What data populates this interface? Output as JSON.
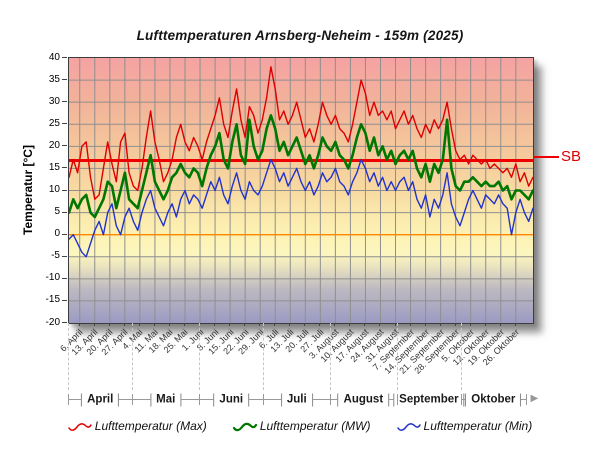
{
  "title": "Lufttemperaturen Arnsberg-Neheim - 159m (2025)",
  "y_axis": {
    "label": "Temperatur [°C]",
    "max": 40,
    "min": -20,
    "step": 5,
    "ticks": [
      "40",
      "35",
      "30",
      "25",
      "20",
      "15",
      "10",
      "5",
      "0",
      "-5",
      "-10",
      "-15",
      "-20"
    ]
  },
  "x_axis": {
    "total_days": 216,
    "week_labels": [
      {
        "label": "6. April",
        "day": 5
      },
      {
        "label": "13. April",
        "day": 12
      },
      {
        "label": "20. April",
        "day": 19
      },
      {
        "label": "27. April",
        "day": 26
      },
      {
        "label": "4. Mai",
        "day": 33
      },
      {
        "label": "11. Mai",
        "day": 40
      },
      {
        "label": "18. Mai",
        "day": 47
      },
      {
        "label": "25. Mai",
        "day": 54
      },
      {
        "label": "1. Juni",
        "day": 61
      },
      {
        "label": "8. Juni",
        "day": 68
      },
      {
        "label": "15. Juni",
        "day": 75
      },
      {
        "label": "22. Juni",
        "day": 82
      },
      {
        "label": "29. Juni",
        "day": 89
      },
      {
        "label": "6. Juli",
        "day": 96
      },
      {
        "label": "13. Juli",
        "day": 103
      },
      {
        "label": "20. Juli",
        "day": 110
      },
      {
        "label": "27. Juli",
        "day": 117
      },
      {
        "label": "3. August",
        "day": 124
      },
      {
        "label": "10. August",
        "day": 131
      },
      {
        "label": "17. August",
        "day": 138
      },
      {
        "label": "24. August",
        "day": 145
      },
      {
        "label": "31. August",
        "day": 152
      },
      {
        "label": "7. September",
        "day": 159
      },
      {
        "label": "14. September",
        "day": 166
      },
      {
        "label": "21. September",
        "day": 173
      },
      {
        "label": "28. September",
        "day": 180
      },
      {
        "label": "5. Oktober",
        "day": 187
      },
      {
        "label": "12. Oktober",
        "day": 194
      },
      {
        "label": "19. Oktober",
        "day": 201
      },
      {
        "label": "26. Oktober",
        "day": 208
      }
    ],
    "months": [
      {
        "label": "April",
        "start_day": 0,
        "end_day": 30
      },
      {
        "label": "Mai",
        "start_day": 30,
        "end_day": 61
      },
      {
        "label": "Juni",
        "start_day": 61,
        "end_day": 91
      },
      {
        "label": "Juli",
        "start_day": 91,
        "end_day": 122
      },
      {
        "label": "August",
        "start_day": 122,
        "end_day": 153
      },
      {
        "label": "September",
        "start_day": 153,
        "end_day": 183
      },
      {
        "label": "Oktober",
        "start_day": 183,
        "end_day": 213
      }
    ],
    "boundary_days": [
      0,
      30,
      61,
      91,
      122,
      153,
      183,
      213
    ],
    "month_dash_days": [
      0,
      30,
      61,
      91,
      122,
      153,
      183
    ],
    "arrow_icon": "▶"
  },
  "reference_lines": {
    "sb": {
      "label": "SB",
      "value": 16.8,
      "color": "#ee0000",
      "width": 3
    },
    "zero": {
      "value": 0,
      "color": "#ff8800",
      "width": 1.3
    }
  },
  "legend": [
    {
      "label": "Lufttemperatur (Max)",
      "color": "#dd0000"
    },
    {
      "label": "Lufttemperatur (MW)",
      "color": "#007700"
    },
    {
      "label": "Lufttemperatur (Min)",
      "color": "#2233cc"
    }
  ],
  "chart_data": {
    "type": "line",
    "title": "Lufttemperaturen Arnsberg-Neheim - 159m (2025)",
    "xlabel": "",
    "ylabel": "Temperatur [°C]",
    "ylim": [
      -20,
      40
    ],
    "x_unit": "days_since_1_april_2025_sampled_every_2_days",
    "x_range_days": [
      0,
      216
    ],
    "grid": true,
    "legend_position": "bottom",
    "series": [
      {
        "name": "Lufttemperatur (Max)",
        "color": "#dd0000",
        "width": 1.4,
        "values": [
          13,
          17,
          14,
          20,
          21,
          13,
          8,
          9,
          15,
          21,
          16,
          12,
          21,
          23,
          14,
          11,
          10,
          15,
          22,
          28,
          21,
          17,
          12,
          14,
          17,
          22,
          25,
          21,
          19,
          22,
          20,
          17,
          21,
          24,
          27,
          31,
          25,
          22,
          28,
          33,
          26,
          22,
          29,
          27,
          23,
          26,
          31,
          38,
          33,
          26,
          28,
          25,
          27,
          30,
          26,
          22,
          24,
          21,
          25,
          30,
          27,
          25,
          27,
          24,
          23,
          21,
          25,
          30,
          35,
          32,
          27,
          30,
          27,
          28,
          26,
          28,
          24,
          26,
          28,
          25,
          27,
          24,
          22,
          25,
          23,
          26,
          24,
          26,
          30,
          24,
          19,
          17,
          18,
          16,
          18,
          17,
          16,
          17,
          15,
          16,
          15,
          14,
          15,
          13,
          16,
          12,
          14,
          11,
          13
        ]
      },
      {
        "name": "Lufttemperatur (MW)",
        "color": "#007700",
        "width": 2.6,
        "values": [
          5,
          8,
          6,
          8,
          9,
          5,
          4,
          6,
          8,
          12,
          11,
          6,
          10,
          14,
          8,
          7,
          6,
          10,
          14,
          18,
          12,
          10,
          8,
          10,
          13,
          14,
          16,
          14,
          13,
          15,
          14,
          11,
          15,
          18,
          20,
          23,
          17,
          15,
          21,
          25,
          18,
          16,
          26,
          20,
          17,
          19,
          24,
          27,
          24,
          19,
          21,
          18,
          20,
          22,
          19,
          16,
          18,
          15,
          18,
          22,
          20,
          19,
          21,
          18,
          17,
          15,
          18,
          22,
          25,
          23,
          19,
          22,
          18,
          20,
          17,
          19,
          16,
          18,
          19,
          17,
          19,
          15,
          13,
          16,
          12,
          16,
          14,
          17,
          26,
          15,
          11,
          10,
          12,
          12,
          13,
          12,
          11,
          12,
          11,
          11,
          12,
          10,
          11,
          8,
          10,
          10,
          9,
          8,
          10
        ]
      },
      {
        "name": "Lufttemperatur (Min)",
        "color": "#2233cc",
        "width": 1.4,
        "values": [
          -1,
          0,
          -2,
          -4,
          -5,
          -2,
          1,
          3,
          0,
          5,
          7,
          2,
          0,
          4,
          6,
          3,
          1,
          5,
          8,
          10,
          6,
          4,
          2,
          5,
          7,
          4,
          8,
          10,
          7,
          9,
          8,
          6,
          9,
          12,
          10,
          13,
          9,
          7,
          11,
          14,
          10,
          8,
          12,
          10,
          9,
          11,
          14,
          17,
          15,
          12,
          14,
          11,
          13,
          15,
          12,
          10,
          12,
          9,
          11,
          14,
          12,
          13,
          15,
          12,
          11,
          9,
          12,
          14,
          17,
          15,
          12,
          14,
          11,
          13,
          10,
          12,
          10,
          12,
          13,
          10,
          12,
          8,
          6,
          9,
          4,
          8,
          6,
          9,
          14,
          7,
          4,
          2,
          5,
          8,
          10,
          8,
          6,
          9,
          8,
          7,
          9,
          7,
          6,
          0,
          5,
          8,
          5,
          3,
          6
        ]
      }
    ]
  },
  "style": {
    "grid_color": "#8f8f8f",
    "plot_border_color": "#3c3c3c",
    "gradient_stops": [
      {
        "pct": 0,
        "color": "#f5a2a2"
      },
      {
        "pct": 17,
        "color": "#f2b39a"
      },
      {
        "pct": 33,
        "color": "#f4c69b"
      },
      {
        "pct": 50,
        "color": "#f8daa1"
      },
      {
        "pct": 58,
        "color": "#fae7ab"
      },
      {
        "pct": 67,
        "color": "#fdf2b3"
      },
      {
        "pct": 74,
        "color": "#fcf6bf"
      },
      {
        "pct": 79,
        "color": "#e9e2bf"
      },
      {
        "pct": 87,
        "color": "#bebac1"
      },
      {
        "pct": 100,
        "color": "#9b9ac3"
      }
    ]
  }
}
